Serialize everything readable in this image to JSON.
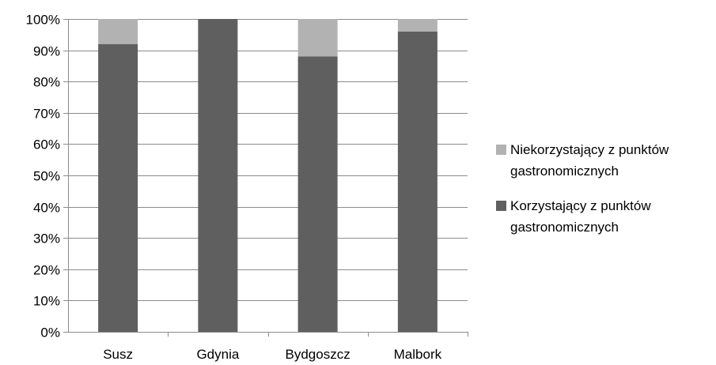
{
  "chart_data": {
    "type": "bar",
    "stacked": true,
    "percent_stacked": true,
    "categories": [
      "Susz",
      "Gdynia",
      "Bydgoszcz",
      "Malbork"
    ],
    "series": [
      {
        "name_lines": [
          "Korzystający z punktów",
          "gastronomicznych"
        ],
        "color": "#5f5f5f",
        "values": [
          92,
          100,
          88,
          96
        ]
      },
      {
        "name_lines": [
          "Niekorzystający z punktów",
          "gastronomicznych"
        ],
        "color": "#b2b2b2",
        "values": [
          8,
          0,
          12,
          4
        ]
      }
    ],
    "y_ticks": [
      "0%",
      "10%",
      "20%",
      "30%",
      "40%",
      "50%",
      "60%",
      "70%",
      "80%",
      "90%",
      "100%"
    ],
    "ylim": [
      0,
      100
    ],
    "grid": true,
    "legend_position": "right",
    "legend_order": [
      1,
      0
    ]
  }
}
